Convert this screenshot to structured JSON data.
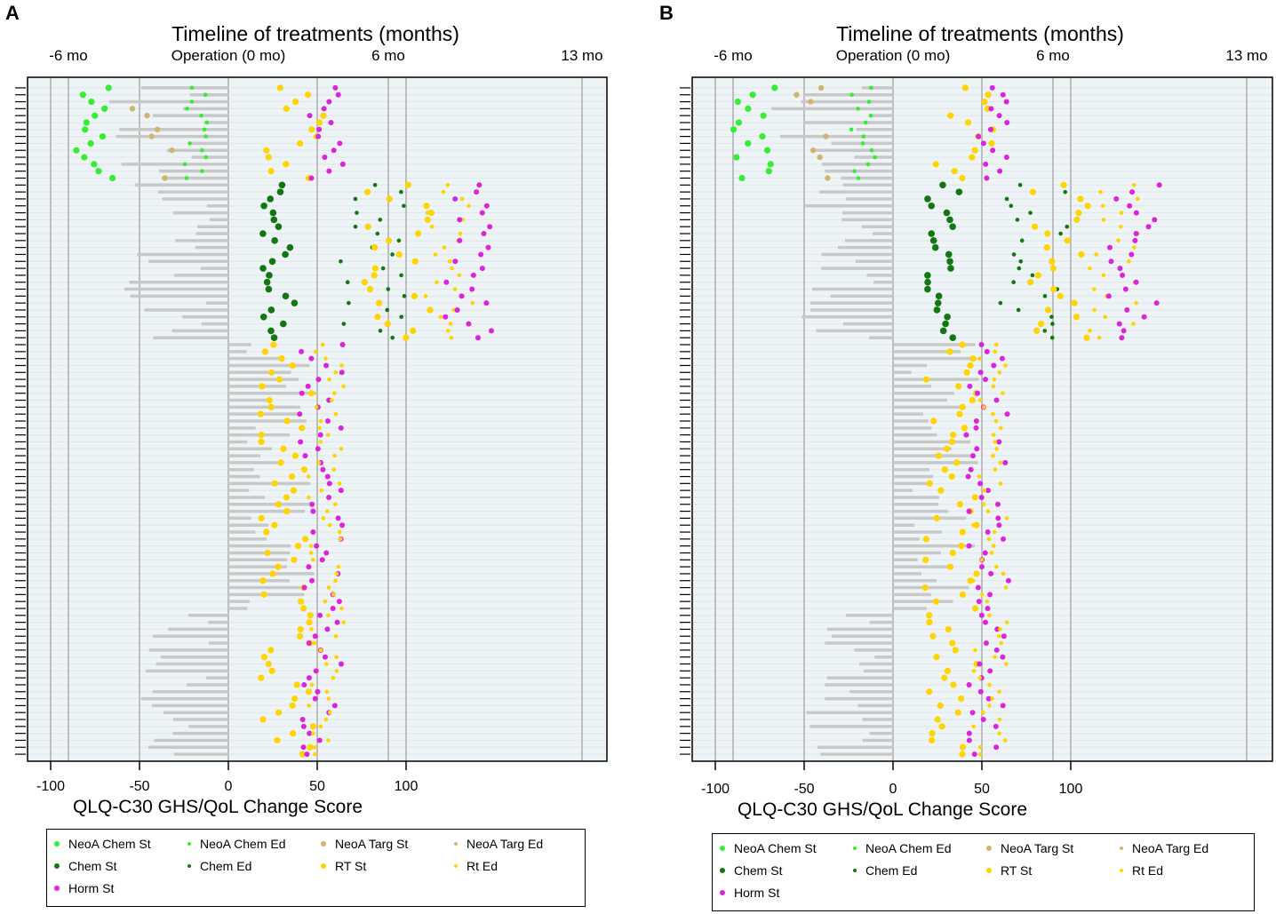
{
  "figure": {
    "panels": [
      "A",
      "B"
    ]
  },
  "colors": {
    "background": "#eef3f6",
    "stripe": "#dfe9ee",
    "bar": "#c8c8c8",
    "vline": "#bdbdbd",
    "neoa_chem": "#33ee33",
    "chem": "#117711",
    "neoa_targ": "#d2b46e",
    "rt": "#ffd400",
    "horm": "#dd22dd"
  },
  "chart_data": [
    {
      "panel_label": "A",
      "type": "scatter",
      "title": "Timeline of treatments (months)",
      "xlabel": "QLQ-C30 GHS/QoL Change Score",
      "xlim": [
        -112,
        213
      ],
      "x_ticks": [
        -100,
        -50,
        0,
        50,
        100
      ],
      "x_tick_labels": [
        "-100",
        "-50",
        "0",
        "50",
        "100"
      ],
      "timeline_marks": [
        {
          "label": "-6 mo",
          "value": -90
        },
        {
          "label": "Operation (0 mo)",
          "value": 0
        },
        {
          "label": "6 mo",
          "value": 90
        },
        {
          "label": "13 mo",
          "value": 199
        }
      ],
      "grey_lines": [
        -100,
        -90,
        -50,
        0,
        50,
        90,
        100,
        199
      ],
      "n_patients": 97,
      "seed": 11
    },
    {
      "panel_label": "B",
      "type": "scatter",
      "title": "Timeline of treatments (months)",
      "xlabel": "QLQ-C30 GHS/QoL Change Score",
      "xlim": [
        -112,
        213
      ],
      "x_ticks": [
        -100,
        -50,
        0,
        50,
        100
      ],
      "x_tick_labels": [
        "-100",
        "-50",
        "0",
        "50",
        "100"
      ],
      "timeline_marks": [
        {
          "label": "-6 mo",
          "value": -90
        },
        {
          "label": "Operation (0 mo)",
          "value": 0
        },
        {
          "label": "6 mo",
          "value": 90
        },
        {
          "label": "13 mo",
          "value": 199
        }
      ],
      "grey_lines": [
        -100,
        -90,
        -50,
        0,
        50,
        90,
        100,
        199
      ],
      "n_patients": 97,
      "seed": 23
    }
  ],
  "legend": {
    "items": [
      {
        "label": "NeoA Chem St",
        "color_key": "neoa_chem",
        "size": "large"
      },
      {
        "label": "NeoA Chem Ed",
        "color_key": "neoa_chem",
        "size": "small"
      },
      {
        "label": "NeoA Targ St",
        "color_key": "neoa_targ",
        "size": "large"
      },
      {
        "label": "NeoA Targ Ed",
        "color_key": "neoa_targ",
        "size": "small"
      },
      {
        "label": "Chem St",
        "color_key": "chem",
        "size": "large"
      },
      {
        "label": "Chem Ed",
        "color_key": "chem",
        "size": "small"
      },
      {
        "label": "RT St",
        "color_key": "rt",
        "size": "large"
      },
      {
        "label": "Rt Ed",
        "color_key": "rt",
        "size": "small"
      },
      {
        "label": "Horm St",
        "color_key": "horm",
        "size": "large"
      }
    ]
  }
}
